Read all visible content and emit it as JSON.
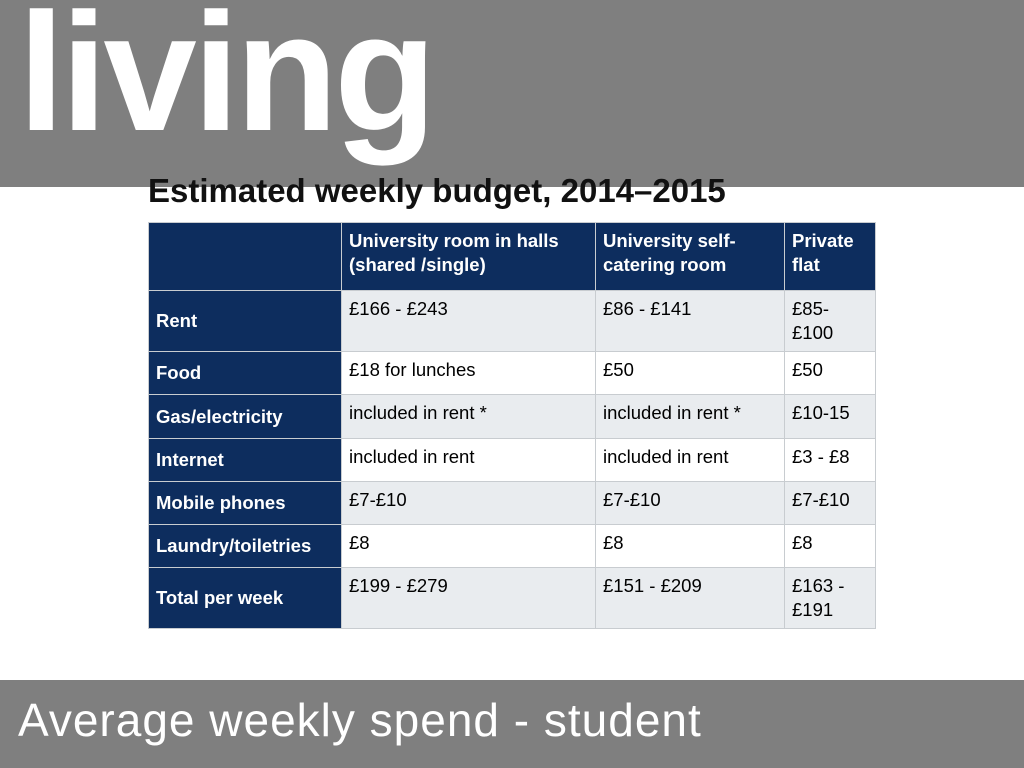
{
  "header": {
    "title": "living"
  },
  "table": {
    "title": "Estimated weekly budget, 2014–2015",
    "columns": [
      "University room in halls (shared /single)",
      "University self-catering room",
      "Private flat"
    ],
    "rows": [
      [
        "Rent",
        "£166 - £243",
        "£86 - £141",
        "£85-£100"
      ],
      [
        "Food",
        "£18 for lunches",
        "£50",
        "£50"
      ],
      [
        "Gas/electricity",
        "included in rent *",
        "included in rent *",
        "£10-15"
      ],
      [
        "Internet",
        "included in rent",
        "included in rent",
        "£3 - £8"
      ],
      [
        "Mobile phones",
        "£7-£10",
        "£7-£10",
        "£7-£10"
      ],
      [
        "Laundry/toiletries",
        "£8",
        "£8",
        "£8"
      ],
      [
        "Total per week",
        "£199 - £279",
        "£151 - £209",
        "£163 - £191"
      ]
    ]
  },
  "footer": {
    "text": "Average weekly spend - student"
  }
}
